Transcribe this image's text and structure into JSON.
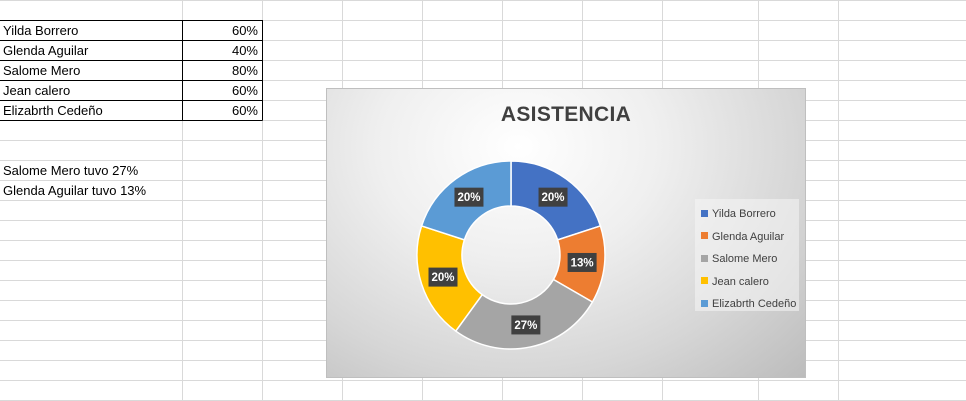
{
  "sheet": {
    "rows": [
      {
        "name": "Yilda Borrero",
        "value": "60%"
      },
      {
        "name": "Glenda Aguilar",
        "value": "40%"
      },
      {
        "name": "Salome Mero",
        "value": "80%"
      },
      {
        "name": "Jean calero",
        "value": "60%"
      },
      {
        "name": "Elizabrth Cedeño",
        "value": "60%"
      }
    ],
    "notes": [
      "Salome Mero tuvo 27%",
      "Glenda Aguilar tuvo 13%"
    ]
  },
  "chart_data": {
    "type": "pie",
    "title": "ASISTENCIA",
    "categories": [
      "Yilda Borrero",
      "Glenda Aguilar",
      "Salome Mero",
      "Jean calero",
      "Elizabrth Cedeño"
    ],
    "values": [
      60,
      40,
      80,
      60,
      60
    ],
    "data_labels": [
      "20%",
      "13%",
      "27%",
      "20%",
      "20%"
    ],
    "colors": [
      "#4472C4",
      "#ED7D31",
      "#A5A5A5",
      "#FFC000",
      "#5B9BD5"
    ],
    "legend_position": "right",
    "donut": true
  }
}
